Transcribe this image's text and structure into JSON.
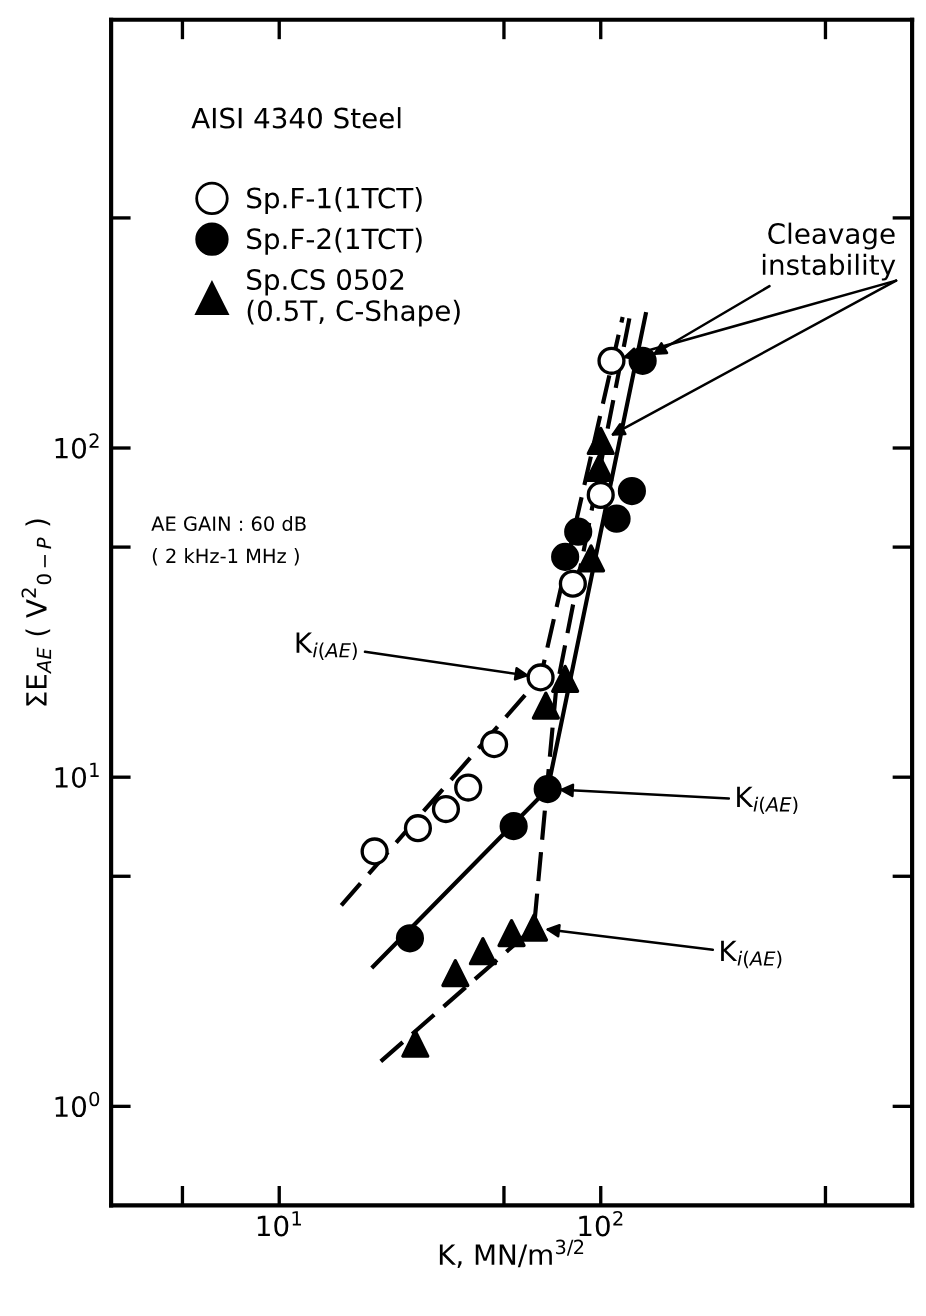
{
  "chart_data": {
    "type": "scatter",
    "xlabel": "K, MN/m$^{3/2}$",
    "ylabel": "ΣE$_{AE}$ ( V$^{2}$$_{0−P}$ )",
    "log": "xy",
    "xlim": [
      3,
      930
    ],
    "ylim": [
      0.5,
      2000
    ],
    "xticks": [
      {
        "value": 5,
        "label": null
      },
      {
        "value": 10,
        "label": "10$^{1}$"
      },
      {
        "value": 50,
        "label": null
      },
      {
        "value": 100,
        "label": "10$^{2}$"
      },
      {
        "value": 500,
        "label": null
      }
    ],
    "yticks": [
      {
        "value": 1,
        "label": "10$^{0}$"
      },
      {
        "value": 5,
        "label": null
      },
      {
        "value": 10,
        "label": "10$^{1}$"
      },
      {
        "value": 50,
        "label": null
      },
      {
        "value": 100,
        "label": "10$^{2}$"
      },
      {
        "value": 500,
        "label": null
      }
    ],
    "grid": false,
    "legend": "top left",
    "series": [
      {
        "type": "line",
        "color": "#000000",
        "line_style": "dashed",
        "marker": "none",
        "x": [
          15.6,
          65,
          117
        ],
        "values": [
          4.08,
          20.1,
          250
        ]
      },
      {
        "type": "line",
        "color": "#000000",
        "line_style": "solid",
        "marker": "none",
        "x": [
          19.6,
          68.4,
          138
        ],
        "values": [
          2.66,
          9.2,
          255
        ]
      },
      {
        "type": "line",
        "color": "#000000",
        "line_style": "dashed",
        "marker": "none",
        "x": [
          20.7,
          62,
          72.5,
          123
        ],
        "values": [
          1.37,
          3.49,
          18.1,
          250
        ]
      },
      {
        "name": "Sp.F-1(1TCT)",
        "marker": "circle",
        "color": "#ffffff",
        "x": [
          19.8,
          27,
          33,
          38.7,
          46.6,
          65,
          81.9,
          100,
          108
        ],
        "values": [
          5.95,
          7.0,
          8.0,
          9.3,
          12.6,
          20.1,
          38.7,
          72,
          184
        ]
      },
      {
        "name": "Sp.F-2(1TCT)",
        "marker": "circle",
        "color": "#000000",
        "x": [
          25.5,
          53.6,
          68.4,
          77.5,
          85.1,
          112,
          125,
          135
        ],
        "values": [
          3.24,
          7.1,
          9.2,
          46.7,
          55.7,
          61,
          74,
          184
        ]
      },
      {
        "name": "Sp.CS 0502\n(0.5T, C-Shape)",
        "marker": "triangle",
        "color": "#000000",
        "x": [
          26.5,
          35.3,
          43,
          52.8,
          62,
          67.5,
          77.5,
          93.3,
          99,
          100
        ],
        "values": [
          1.55,
          2.54,
          2.96,
          3.36,
          3.49,
          16.5,
          19.9,
          46.2,
          87,
          105
        ]
      }
    ],
    "annotations": [
      "AISI 4340 Steel",
      "AE GAIN : 60 dB\n( 2 kHz-1 MHz )",
      {
        "text": "Cleavage\ninstability",
        "x": 135,
        "y": 184
      },
      {
        "text": "K$_{i(AE)}$",
        "x": 65,
        "y": 20.1
      },
      {
        "text": "K$_{i(AE)}$",
        "x": 68.4,
        "y": 9.2
      },
      {
        "text": "K$_{i(AE)}$",
        "x": 62,
        "y": 3.49
      }
    ]
  }
}
